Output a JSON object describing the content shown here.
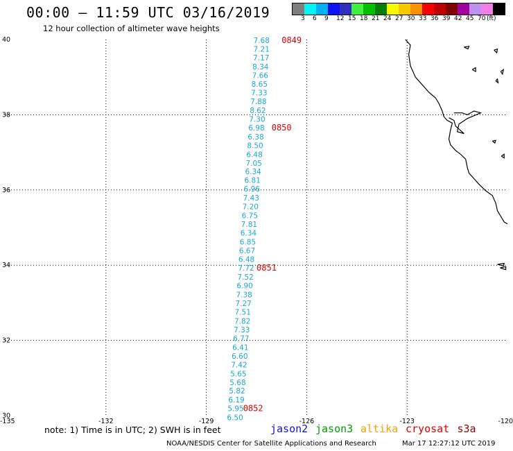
{
  "header": {
    "title": "00:00 — 11:59 UTC 03/16/2019",
    "subtitle": "12 hour collection of altimeter wave heights"
  },
  "colorbar": {
    "colors": [
      "#7f7f7f",
      "#00f5f5",
      "#00b0f0",
      "#1010f0",
      "#3030c0",
      "#40f040",
      "#00c000",
      "#008000",
      "#f8f800",
      "#f8c800",
      "#f89000",
      "#f80000",
      "#c00000",
      "#800000",
      "#a000a0",
      "#c090f0",
      "#f080e8",
      "#000000"
    ],
    "labels": [
      "3",
      "6",
      "9",
      "12",
      "15",
      "18",
      "21",
      "24",
      "27",
      "30",
      "33",
      "36",
      "39",
      "42",
      "45",
      "70",
      "(ft)"
    ]
  },
  "axes": {
    "x_ticks": [
      "-135",
      "-132",
      "-129",
      "-126",
      "-123",
      "-120"
    ],
    "y_ticks": [
      "40",
      "38",
      "36",
      "34",
      "32",
      "30"
    ],
    "x_range": [
      -135,
      -120
    ],
    "y_range": [
      30,
      40
    ]
  },
  "track": {
    "color": "#1aa8d8",
    "points": [
      {
        "lon": -127.35,
        "lat": 39.98,
        "swh": "7.68"
      },
      {
        "lon": -127.35,
        "lat": 39.75,
        "swh": "7.21"
      },
      {
        "lon": -127.36,
        "lat": 39.52,
        "swh": "7.17"
      },
      {
        "lon": -127.38,
        "lat": 39.28,
        "swh": "8.34"
      },
      {
        "lon": -127.39,
        "lat": 39.05,
        "swh": "7.66"
      },
      {
        "lon": -127.41,
        "lat": 38.82,
        "swh": "8.65"
      },
      {
        "lon": -127.42,
        "lat": 38.59,
        "swh": "7.33"
      },
      {
        "lon": -127.44,
        "lat": 38.36,
        "swh": "7.88"
      },
      {
        "lon": -127.46,
        "lat": 38.12,
        "swh": "8.62"
      },
      {
        "lon": -127.48,
        "lat": 37.89,
        "swh": "7.30"
      },
      {
        "lon": -127.5,
        "lat": 37.66,
        "swh": "6.98"
      },
      {
        "lon": -127.52,
        "lat": 37.42,
        "swh": "6.38"
      },
      {
        "lon": -127.54,
        "lat": 37.19,
        "swh": "8.50"
      },
      {
        "lon": -127.56,
        "lat": 36.95,
        "swh": "6.48"
      },
      {
        "lon": -127.58,
        "lat": 36.72,
        "swh": "7.05"
      },
      {
        "lon": -127.6,
        "lat": 36.49,
        "swh": "6.34"
      },
      {
        "lon": -127.62,
        "lat": 36.26,
        "swh": "6.81"
      },
      {
        "lon": -127.64,
        "lat": 36.03,
        "swh": "6.96"
      },
      {
        "lon": -127.66,
        "lat": 35.79,
        "swh": "7.43"
      },
      {
        "lon": -127.68,
        "lat": 35.56,
        "swh": "7.20"
      },
      {
        "lon": -127.7,
        "lat": 35.32,
        "swh": "6.75"
      },
      {
        "lon": -127.72,
        "lat": 35.09,
        "swh": "7.81"
      },
      {
        "lon": -127.74,
        "lat": 34.86,
        "swh": "6.34"
      },
      {
        "lon": -127.76,
        "lat": 34.62,
        "swh": "6.85"
      },
      {
        "lon": -127.78,
        "lat": 34.39,
        "swh": "6.67"
      },
      {
        "lon": -127.8,
        "lat": 34.16,
        "swh": "6.48"
      },
      {
        "lon": -127.81,
        "lat": 33.93,
        "swh": "7.72"
      },
      {
        "lon": -127.83,
        "lat": 33.69,
        "swh": "7.52"
      },
      {
        "lon": -127.85,
        "lat": 33.46,
        "swh": "6.90"
      },
      {
        "lon": -127.87,
        "lat": 33.22,
        "swh": "7.38"
      },
      {
        "lon": -127.89,
        "lat": 32.99,
        "swh": "7.27"
      },
      {
        "lon": -127.91,
        "lat": 32.76,
        "swh": "7.51"
      },
      {
        "lon": -127.92,
        "lat": 32.52,
        "swh": "7.82"
      },
      {
        "lon": -127.94,
        "lat": 32.29,
        "swh": "7.33"
      },
      {
        "lon": -127.96,
        "lat": 32.06,
        "swh": "6.77"
      },
      {
        "lon": -127.98,
        "lat": 31.82,
        "swh": "6.41"
      },
      {
        "lon": -128.0,
        "lat": 31.59,
        "swh": "6.60"
      },
      {
        "lon": -128.02,
        "lat": 31.36,
        "swh": "7.42"
      },
      {
        "lon": -128.04,
        "lat": 31.12,
        "swh": "5.65"
      },
      {
        "lon": -128.06,
        "lat": 30.89,
        "swh": "5.68"
      },
      {
        "lon": -128.08,
        "lat": 30.66,
        "swh": "5.82"
      },
      {
        "lon": -128.1,
        "lat": 30.42,
        "swh": "6.19"
      },
      {
        "lon": -128.12,
        "lat": 30.19,
        "swh": "5.95"
      },
      {
        "lon": -128.14,
        "lat": 29.95,
        "swh": "6.50"
      }
    ]
  },
  "time_labels": [
    {
      "text": "0849",
      "lon": -126.45,
      "lat": 39.98,
      "color": "#e00000"
    },
    {
      "text": "0850",
      "lon": -126.75,
      "lat": 37.66,
      "color": "#e00000"
    },
    {
      "text": "0851",
      "lon": -127.2,
      "lat": 33.93,
      "color": "#e00000"
    },
    {
      "text": "0852",
      "lon": -127.6,
      "lat": 30.19,
      "color": "#e00000"
    }
  ],
  "coastline": {
    "mainland": [
      [
        -123.05,
        40.0
      ],
      [
        -122.9,
        39.85
      ],
      [
        -122.95,
        39.6
      ],
      [
        -122.9,
        39.3
      ],
      [
        -122.75,
        39.0
      ],
      [
        -122.6,
        38.85
      ],
      [
        -122.35,
        38.6
      ],
      [
        -122.15,
        38.45
      ],
      [
        -122.05,
        38.3
      ],
      [
        -121.95,
        38.1
      ],
      [
        -121.9,
        37.95
      ],
      [
        -121.8,
        37.85
      ],
      [
        -121.65,
        37.78
      ],
      [
        -121.7,
        37.6
      ],
      [
        -121.75,
        37.35
      ],
      [
        -121.7,
        37.2
      ],
      [
        -121.55,
        37.05
      ],
      [
        -121.4,
        36.95
      ],
      [
        -121.25,
        36.82
      ],
      [
        -121.2,
        36.6
      ],
      [
        -121.15,
        36.45
      ],
      [
        -121.0,
        36.3
      ],
      [
        -120.85,
        36.15
      ],
      [
        -120.65,
        35.98
      ],
      [
        -120.45,
        35.85
      ],
      [
        -120.35,
        35.65
      ],
      [
        -120.3,
        35.45
      ],
      [
        -120.2,
        35.3
      ],
      [
        -120.1,
        35.15
      ],
      [
        -120.0,
        35.1
      ]
    ],
    "bay": [
      [
        -121.6,
        38.05
      ],
      [
        -121.35,
        38.05
      ],
      [
        -121.2,
        38.0
      ],
      [
        -121.0,
        38.1
      ],
      [
        -120.8,
        38.05
      ],
      [
        -121.2,
        37.9
      ],
      [
        -121.45,
        37.75
      ],
      [
        -121.5,
        37.55
      ],
      [
        -121.3,
        37.5
      ],
      [
        -121.55,
        37.7
      ],
      [
        -121.6,
        37.85
      ],
      [
        -121.75,
        37.92
      ]
    ],
    "islands": [
      [
        [
          -121.3,
          39.8
        ],
        [
          -121.15,
          39.82
        ],
        [
          -121.18,
          39.75
        ],
        [
          -121.3,
          39.8
        ]
      ],
      [
        [
          -120.4,
          39.72
        ],
        [
          -120.3,
          39.75
        ],
        [
          -120.32,
          39.65
        ],
        [
          -120.4,
          39.72
        ]
      ],
      [
        [
          -121.05,
          39.2
        ],
        [
          -120.95,
          39.25
        ],
        [
          -120.95,
          39.15
        ],
        [
          -121.05,
          39.2
        ]
      ],
      [
        [
          -120.2,
          39.15
        ],
        [
          -120.12,
          39.2
        ],
        [
          -120.15,
          39.08
        ],
        [
          -120.2,
          39.15
        ]
      ],
      [
        [
          -120.35,
          38.9
        ],
        [
          -120.3,
          38.95
        ],
        [
          -120.28,
          38.85
        ],
        [
          -120.35,
          38.9
        ]
      ],
      [
        [
          -120.45,
          37.3
        ],
        [
          -120.35,
          37.32
        ],
        [
          -120.38,
          37.25
        ],
        [
          -120.45,
          37.3
        ]
      ],
      [
        [
          -120.18,
          36.9
        ],
        [
          -120.1,
          36.95
        ],
        [
          -120.1,
          36.85
        ],
        [
          -120.18,
          36.9
        ]
      ],
      [
        [
          -120.3,
          34.02
        ],
        [
          -120.1,
          34.05
        ],
        [
          -120.12,
          33.98
        ],
        [
          -120.3,
          34.02
        ]
      ],
      [
        [
          -120.22,
          33.93
        ],
        [
          -120.05,
          33.96
        ],
        [
          -120.05,
          33.88
        ],
        [
          -120.22,
          33.93
        ]
      ]
    ]
  },
  "note": "note: 1) Time is in UTC; 2) SWH is in feet",
  "satellites": [
    {
      "name": "jason2",
      "color": "#1010e0"
    },
    {
      "name": "jason3",
      "color": "#00a000"
    },
    {
      "name": "altika",
      "color": "#f8a000"
    },
    {
      "name": "cryosat",
      "color": "#e00000"
    },
    {
      "name": "s3a",
      "color": "#900000"
    }
  ],
  "footer": {
    "credit": "NOAA/NESDIS Center for Satellite Applications and Research",
    "timestamp": "Mar 17 12:27:12 UTC 2019"
  }
}
